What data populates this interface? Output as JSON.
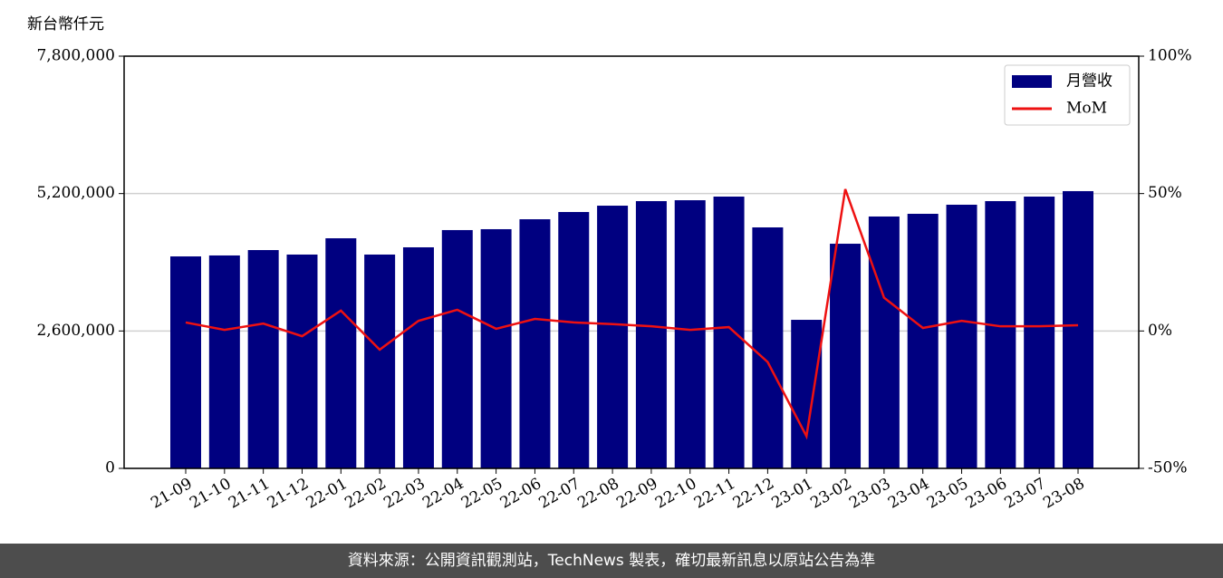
{
  "chart_data": {
    "type": "bar-line",
    "y_label": "新台幣仟元",
    "categories": [
      "21-09",
      "21-10",
      "21-11",
      "21-12",
      "22-01",
      "22-02",
      "22-03",
      "22-04",
      "22-05",
      "22-06",
      "22-07",
      "22-08",
      "22-09",
      "22-10",
      "22-11",
      "22-12",
      "23-01",
      "23-02",
      "23-03",
      "23-04",
      "23-05",
      "23-06",
      "23-07",
      "23-08"
    ],
    "series": [
      {
        "name": "月營收",
        "type": "bar",
        "color": "#000080",
        "values": [
          4011000,
          4029000,
          4131000,
          4046000,
          4354000,
          4046000,
          4183000,
          4509000,
          4526000,
          4714000,
          4851000,
          4971000,
          5057000,
          5074000,
          5143000,
          4560000,
          2811000,
          4251000,
          4766000,
          4817000,
          4989000,
          5057000,
          5143000,
          5246000
        ]
      },
      {
        "name": "MoM",
        "type": "line",
        "axis": "y2",
        "color": "#ee1111",
        "values": [
          3.1,
          0.4,
          2.7,
          -1.9,
          7.4,
          -6.8,
          3.7,
          7.7,
          0.8,
          4.4,
          3.1,
          2.5,
          1.7,
          0.4,
          1.4,
          -11.3,
          -38.3,
          51.6,
          12.1,
          1.1,
          3.7,
          1.7,
          1.7,
          2.1
        ]
      }
    ],
    "ylim": [
      0,
      7800000
    ],
    "yticks": [
      0,
      {
        "value": 2600000,
        "label": "2,600,000"
      },
      {
        "value": 5200000,
        "label": "5,200,000"
      },
      {
        "value": 7800000,
        "label": "7,800,000"
      }
    ],
    "y2lim": [
      -50,
      100
    ],
    "y2ticks": [
      {
        "value": -50,
        "label": "-50%"
      },
      {
        "value": 0,
        "label": "0%"
      },
      {
        "value": 50,
        "label": "50%"
      },
      {
        "value": 100,
        "label": "100%"
      }
    ],
    "grid": true,
    "legend": "upper right"
  },
  "footer": "資料來源：公開資訊觀測站，TechNews 製表，確切最新訊息以原站公告為準"
}
